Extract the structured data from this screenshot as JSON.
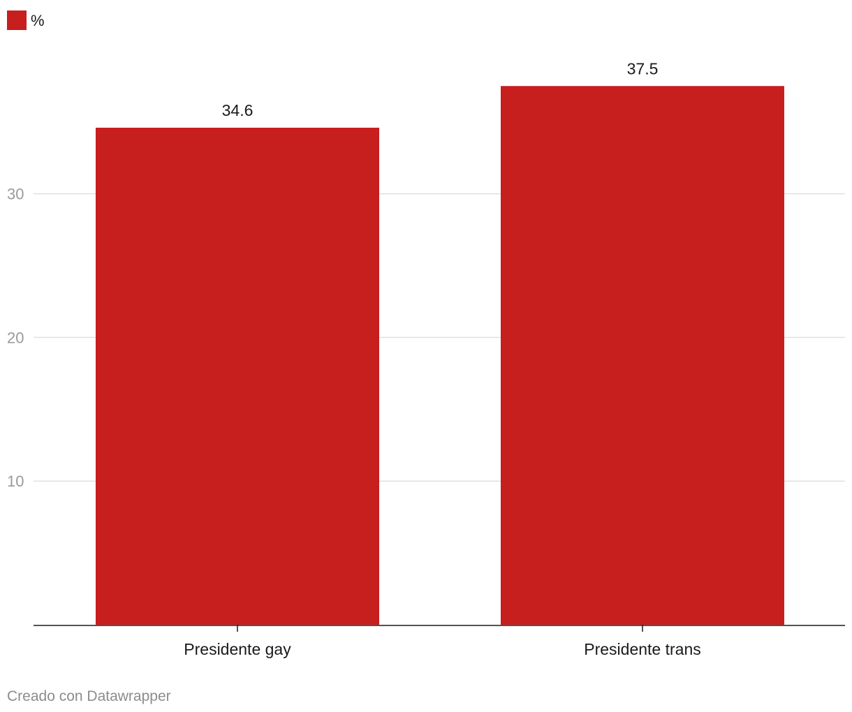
{
  "chart_data": {
    "type": "bar",
    "categories": [
      "Presidente gay",
      "Presidente trans"
    ],
    "series": [
      {
        "name": "%",
        "values": [
          34.6,
          37.5
        ],
        "color": "#c71e1e"
      }
    ],
    "value_labels": [
      "34.6",
      "37.5"
    ],
    "y_ticks": [
      10,
      20,
      30
    ],
    "y_tick_labels": [
      "10",
      "20",
      "30"
    ],
    "ylim": [
      0,
      40
    ],
    "grid": true,
    "legend": "top-left"
  },
  "legend": {
    "label": "%",
    "color": "#c71e1e"
  },
  "footer": {
    "credit": "Creado con Datawrapper"
  },
  "colors": {
    "bar": "#c71e1e",
    "grid": "#e0e0e0",
    "axis": "#1a1a1a"
  }
}
